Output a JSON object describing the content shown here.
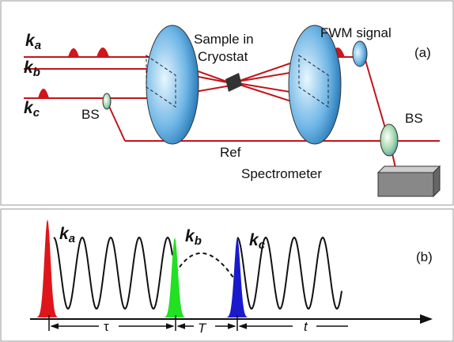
{
  "panel_a": {
    "beam_labels": [
      {
        "symbol": "k",
        "subscript": "a"
      },
      {
        "symbol": "k",
        "subscript": "b"
      },
      {
        "symbol": "k",
        "subscript": "c"
      }
    ],
    "bs_left": "BS",
    "sample": [
      "Sample in",
      "Cryostat"
    ],
    "fwm": "FWM signal",
    "panel_label": "(a)",
    "bs_right": "BS",
    "ref": "Ref",
    "spectrometer": "Spectrometer"
  },
  "panel_b": {
    "pulse_labels": [
      {
        "symbol": "k",
        "subscript": "a"
      },
      {
        "symbol": "k",
        "subscript": "b"
      },
      {
        "symbol": "k",
        "subscript": "c"
      }
    ],
    "panel_label": "(b)",
    "delays": [
      "τ",
      "T",
      "t"
    ]
  }
}
